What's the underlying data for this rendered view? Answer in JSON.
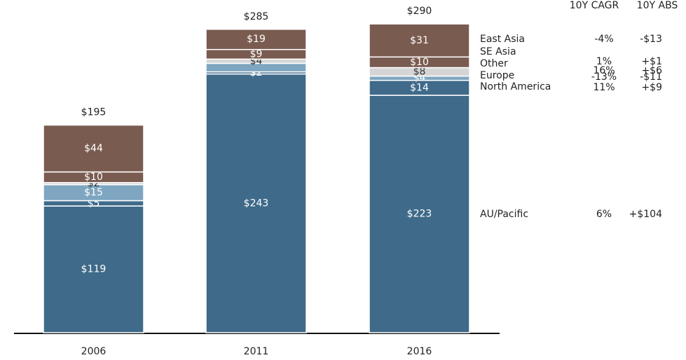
{
  "chart_data": {
    "type": "stacked_bar",
    "categories": [
      "2006",
      "2011",
      "2016"
    ],
    "totals": [
      195,
      285,
      290
    ],
    "total_labels": [
      "$195",
      "$285",
      "$290"
    ],
    "table_headers": [
      "10Y CAGR",
      "10Y ABS"
    ],
    "series": [
      {
        "name": "AU/Pacific",
        "color": "#3f6a89",
        "values": [
          119,
          243,
          223
        ],
        "value_labels": [
          "$119",
          "$243",
          "$223"
        ],
        "cagr": "6%",
        "abs": "+$104"
      },
      {
        "name": "North America",
        "color": "#3f6a89",
        "values": [
          5,
          2,
          14
        ],
        "value_labels": [
          "$5",
          "$2",
          "$14"
        ],
        "cagr": "11%",
        "abs": "+$9"
      },
      {
        "name": "Europe",
        "color": "#7fa6c1",
        "values": [
          15,
          8,
          4
        ],
        "value_labels": [
          "$15",
          null,
          "$4"
        ],
        "cagr": "-13%",
        "abs": "-$11"
      },
      {
        "name": "Other",
        "color": "#d5d5d5",
        "values": [
          2,
          4,
          8
        ],
        "value_labels": [
          "$2",
          "$4",
          "$8"
        ],
        "cagr": "16%",
        "abs": "+$6"
      },
      {
        "name": "SE Asia",
        "color": "#7a5b50",
        "values": [
          10,
          9,
          10
        ],
        "value_labels": [
          "$10",
          "$9",
          "$10"
        ],
        "cagr": "1%",
        "abs": "+$1"
      },
      {
        "name": "East Asia",
        "color": "#7a5b50",
        "values": [
          44,
          19,
          31
        ],
        "value_labels": [
          "$44",
          "$19",
          "$31"
        ],
        "cagr": "-4%",
        "abs": "-$13"
      }
    ]
  }
}
